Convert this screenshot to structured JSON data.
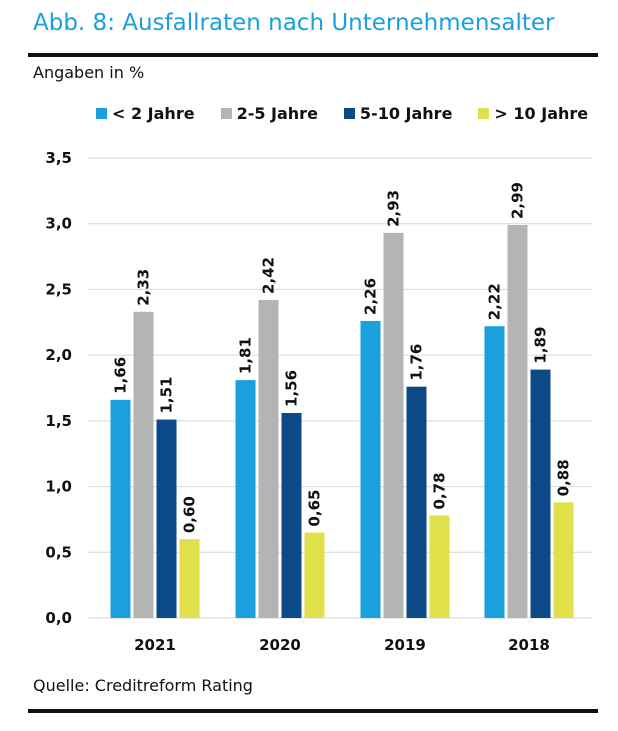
{
  "header": {
    "title": "Abb. 8: Ausfallraten nach Unternehmensalter",
    "unit_note": "Angaben in %"
  },
  "footer": {
    "source": "Quelle: Creditreform Rating"
  },
  "chart_data": {
    "type": "bar",
    "title": "Abb. 8: Ausfallraten nach Unternehmensalter",
    "ylabel": "Angaben in %",
    "xlabel": "",
    "categories": [
      "2021",
      "2020",
      "2019",
      "2018"
    ],
    "ylim": [
      0,
      3.5
    ],
    "yticks": [
      "0,0",
      "0,5",
      "1,0",
      "1,5",
      "2,0",
      "2,5",
      "3,0",
      "3,5"
    ],
    "grid": true,
    "legend_position": "top",
    "series": [
      {
        "name": "< 2 Jahre",
        "color": "#1aa0dc",
        "values": [
          1.66,
          1.81,
          2.26,
          2.22
        ],
        "labels": [
          "1,66",
          "1,81",
          "2,26",
          "2,22"
        ]
      },
      {
        "name": "2-5 Jahre",
        "color": "#b4b4b4",
        "values": [
          2.33,
          2.42,
          2.93,
          2.99
        ],
        "labels": [
          "2,33",
          "2,42",
          "2,93",
          "2,99"
        ]
      },
      {
        "name": "5-10 Jahre",
        "color": "#0b4a86",
        "values": [
          1.51,
          1.56,
          1.76,
          1.89
        ],
        "labels": [
          "1,51",
          "1,56",
          "1,76",
          "1,89"
        ]
      },
      {
        "name": "> 10 Jahre",
        "color": "#dfe04a",
        "values": [
          0.6,
          0.65,
          0.78,
          0.88
        ],
        "labels": [
          "0,60",
          "0,65",
          "0,78",
          "0,88"
        ]
      }
    ]
  }
}
